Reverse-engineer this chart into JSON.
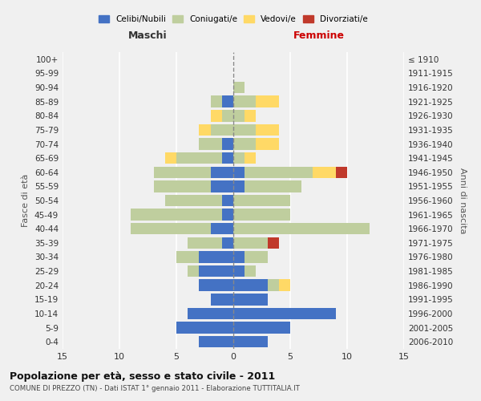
{
  "age_groups": [
    "0-4",
    "5-9",
    "10-14",
    "15-19",
    "20-24",
    "25-29",
    "30-34",
    "35-39",
    "40-44",
    "45-49",
    "50-54",
    "55-59",
    "60-64",
    "65-69",
    "70-74",
    "75-79",
    "80-84",
    "85-89",
    "90-94",
    "95-99",
    "100+"
  ],
  "birth_years": [
    "2006-2010",
    "2001-2005",
    "1996-2000",
    "1991-1995",
    "1986-1990",
    "1981-1985",
    "1976-1980",
    "1971-1975",
    "1966-1970",
    "1961-1965",
    "1956-1960",
    "1951-1955",
    "1946-1950",
    "1941-1945",
    "1936-1940",
    "1931-1935",
    "1926-1930",
    "1921-1925",
    "1916-1920",
    "1911-1915",
    "≤ 1910"
  ],
  "male": {
    "celibi": [
      3,
      5,
      4,
      2,
      3,
      3,
      3,
      1,
      2,
      1,
      1,
      2,
      2,
      1,
      1,
      0,
      0,
      1,
      0,
      0,
      0
    ],
    "coniugati": [
      0,
      0,
      0,
      0,
      0,
      1,
      2,
      3,
      7,
      8,
      5,
      5,
      5,
      4,
      2,
      2,
      1,
      1,
      0,
      0,
      0
    ],
    "vedovi": [
      0,
      0,
      0,
      0,
      0,
      0,
      0,
      0,
      0,
      0,
      0,
      0,
      0,
      1,
      0,
      1,
      1,
      0,
      0,
      0,
      0
    ],
    "divorziati": [
      0,
      0,
      0,
      0,
      0,
      0,
      0,
      0,
      0,
      0,
      0,
      0,
      0,
      0,
      0,
      0,
      0,
      0,
      0,
      0,
      0
    ]
  },
  "female": {
    "nubili": [
      3,
      5,
      9,
      3,
      3,
      1,
      1,
      0,
      0,
      0,
      0,
      1,
      1,
      0,
      0,
      0,
      0,
      0,
      0,
      0,
      0
    ],
    "coniugate": [
      0,
      0,
      0,
      0,
      1,
      1,
      2,
      3,
      12,
      5,
      5,
      5,
      6,
      1,
      2,
      2,
      1,
      2,
      1,
      0,
      0
    ],
    "vedove": [
      0,
      0,
      0,
      0,
      1,
      0,
      0,
      0,
      0,
      0,
      0,
      0,
      2,
      1,
      2,
      2,
      1,
      2,
      0,
      0,
      0
    ],
    "divorziate": [
      0,
      0,
      0,
      0,
      0,
      0,
      0,
      1,
      0,
      0,
      0,
      0,
      1,
      0,
      0,
      0,
      0,
      0,
      0,
      0,
      0
    ]
  },
  "colors": {
    "celibi": "#4472C4",
    "coniugati": "#BFCE9E",
    "vedovi": "#FFD966",
    "divorziati": "#C0392B"
  },
  "xlim": 15,
  "title": "Popolazione per età, sesso e stato civile - 2011",
  "subtitle": "COMUNE DI PREZZO (TN) - Dati ISTAT 1° gennaio 2011 - Elaborazione TUTTITALIA.IT",
  "xlabel_left": "Maschi",
  "xlabel_right": "Femmine",
  "ylabel": "Fasce di età",
  "ylabel_right": "Anni di nascita",
  "legend_labels": [
    "Celibi/Nubili",
    "Coniugati/e",
    "Vedovi/e",
    "Divorziati/e"
  ],
  "background_color": "#f0f0f0"
}
